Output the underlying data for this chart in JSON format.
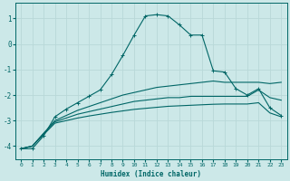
{
  "xlabel": "Humidex (Indice chaleur)",
  "bg_color": "#cce8e8",
  "grid_color": "#b8d8d8",
  "line_color": "#006666",
  "xlim": [
    -0.5,
    23.5
  ],
  "ylim": [
    -4.5,
    1.6
  ],
  "lines": [
    {
      "x": [
        0,
        1,
        2,
        3,
        4,
        5,
        6,
        7,
        8,
        9,
        10,
        11,
        12,
        13,
        14,
        15,
        16,
        17,
        18,
        19,
        20,
        21,
        22,
        23
      ],
      "y": [
        -4.1,
        -4.1,
        -3.6,
        -2.85,
        -2.55,
        -2.3,
        -2.05,
        -1.8,
        -1.2,
        -0.45,
        0.35,
        1.1,
        1.15,
        1.1,
        0.75,
        0.35,
        0.35,
        -1.05,
        -1.1,
        -1.75,
        -2.0,
        -1.75,
        -2.5,
        -2.8
      ],
      "marker": "+"
    },
    {
      "x": [
        0,
        1,
        2,
        3,
        4,
        5,
        6,
        7,
        8,
        9,
        10,
        11,
        12,
        13,
        14,
        15,
        16,
        17,
        18,
        19,
        20,
        21,
        22,
        23
      ],
      "y": [
        -4.1,
        -4.0,
        -3.5,
        -3.0,
        -2.8,
        -2.6,
        -2.45,
        -2.3,
        -2.15,
        -2.0,
        -1.9,
        -1.8,
        -1.7,
        -1.65,
        -1.6,
        -1.55,
        -1.5,
        -1.45,
        -1.5,
        -1.5,
        -1.5,
        -1.5,
        -1.55,
        -1.5
      ],
      "marker": null
    },
    {
      "x": [
        0,
        1,
        2,
        3,
        4,
        5,
        6,
        7,
        8,
        9,
        10,
        11,
        12,
        13,
        14,
        15,
        16,
        17,
        18,
        19,
        20,
        21,
        22,
        23
      ],
      "y": [
        -4.1,
        -4.0,
        -3.5,
        -3.05,
        -2.9,
        -2.75,
        -2.65,
        -2.55,
        -2.45,
        -2.35,
        -2.25,
        -2.2,
        -2.15,
        -2.1,
        -2.1,
        -2.05,
        -2.05,
        -2.05,
        -2.05,
        -2.05,
        -2.05,
        -1.8,
        -2.1,
        -2.2
      ],
      "marker": null
    },
    {
      "x": [
        0,
        1,
        2,
        3,
        4,
        5,
        6,
        7,
        8,
        9,
        10,
        11,
        12,
        13,
        14,
        15,
        16,
        17,
        18,
        19,
        20,
        21,
        22,
        23
      ],
      "y": [
        -4.1,
        -4.0,
        -3.55,
        -3.1,
        -3.0,
        -2.9,
        -2.82,
        -2.75,
        -2.68,
        -2.62,
        -2.56,
        -2.52,
        -2.48,
        -2.44,
        -2.42,
        -2.4,
        -2.38,
        -2.36,
        -2.35,
        -2.35,
        -2.35,
        -2.3,
        -2.7,
        -2.85
      ],
      "marker": null
    }
  ]
}
